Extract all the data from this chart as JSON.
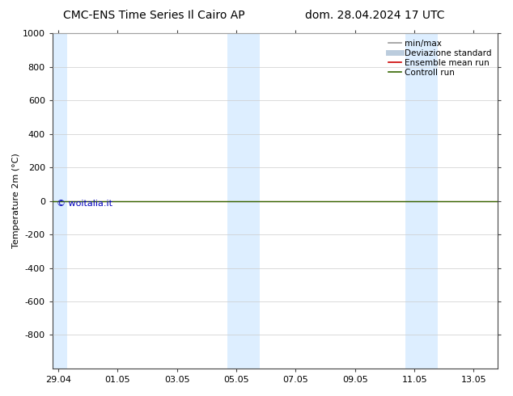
{
  "title_left": "CMC-ENS Time Series Il Cairo AP",
  "title_right": "dom. 28.04.2024 17 UTC",
  "ylabel": "Temperature 2m (°C)",
  "watermark": "© woitalia.it",
  "watermark_color": "#0000bb",
  "ylim_top": -1000,
  "ylim_bottom": 1000,
  "yticks": [
    -800,
    -600,
    -400,
    -200,
    0,
    200,
    400,
    600,
    800,
    1000
  ],
  "xtick_labels": [
    "29.04",
    "01.05",
    "03.05",
    "05.05",
    "07.05",
    "09.05",
    "11.05",
    "13.05"
  ],
  "xtick_positions": [
    0,
    2,
    4,
    6,
    8,
    10,
    12,
    14
  ],
  "xlim": [
    -0.2,
    14.8
  ],
  "bg_color": "#ffffff",
  "shaded_regions": [
    {
      "x_start": -0.2,
      "x_end": 0.3,
      "color": "#ddeeff"
    },
    {
      "x_start": 5.7,
      "x_end": 6.8,
      "color": "#ddeeff"
    },
    {
      "x_start": 11.7,
      "x_end": 12.8,
      "color": "#ddeeff"
    }
  ],
  "line_color_green": "#336600",
  "line_color_red": "#cc0000",
  "legend_entries": [
    {
      "label": "min/max",
      "color": "#999999",
      "lw": 1.2
    },
    {
      "label": "Deviazione standard",
      "color": "#bbccdd",
      "lw": 5
    },
    {
      "label": "Ensemble mean run",
      "color": "#cc0000",
      "lw": 1.2
    },
    {
      "label": "Controll run",
      "color": "#336600",
      "lw": 1.2
    }
  ],
  "title_fontsize": 10,
  "tick_fontsize": 8,
  "legend_fontsize": 7.5,
  "ylabel_fontsize": 8,
  "watermark_fontsize": 8,
  "grid_color": "#cccccc",
  "grid_lw": 0.5,
  "spine_color": "#444444"
}
